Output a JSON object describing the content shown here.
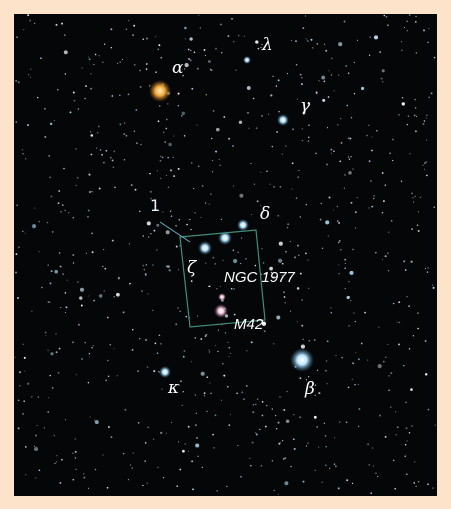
{
  "labels": [
    "α",
    "λ",
    "γ",
    "δ",
    "1",
    "ζ",
    "NGC 1977",
    "M42",
    "κ",
    "β"
  ]
}
